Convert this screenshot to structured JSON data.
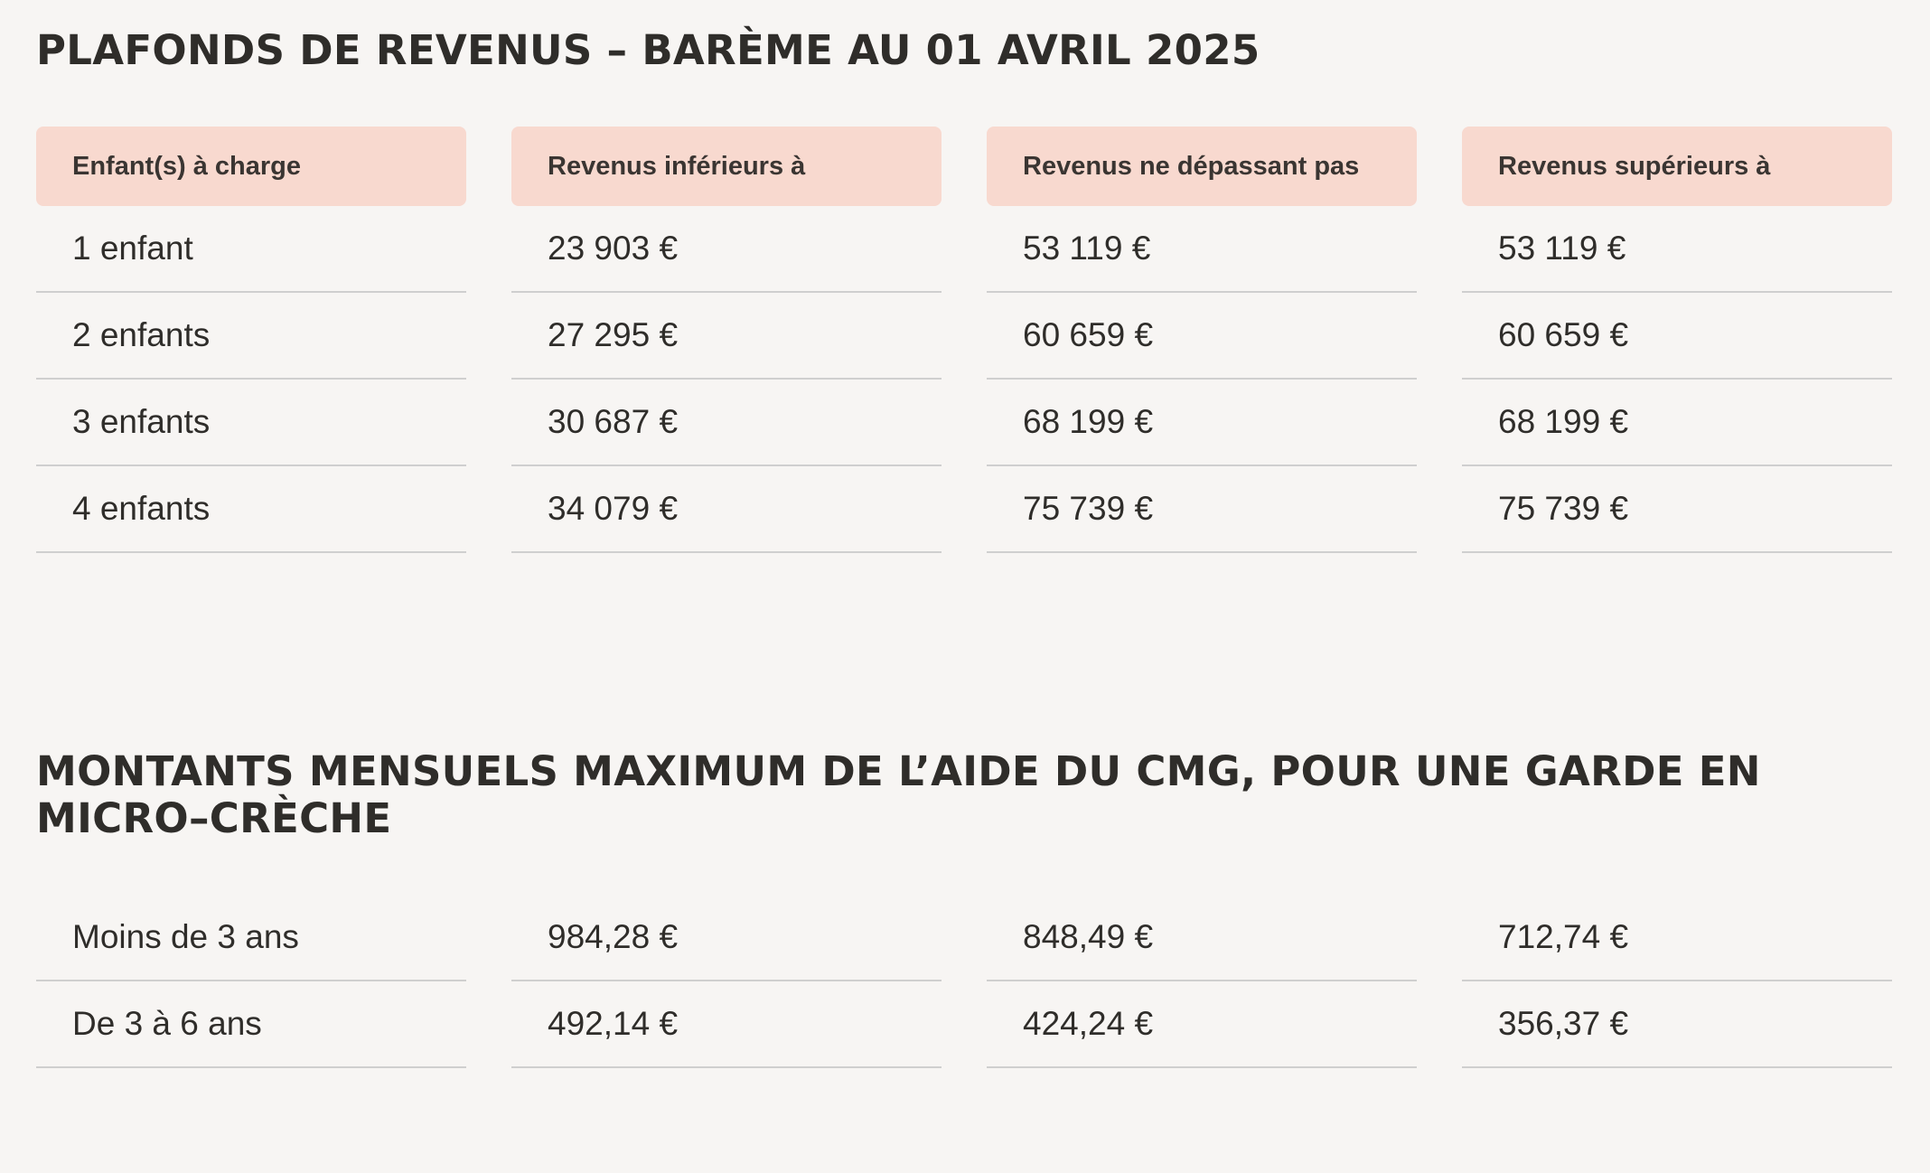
{
  "section1": {
    "title": "PLAFONDS DE REVENUS – BARÈME AU 01 AVRIL 2025",
    "headers": [
      "Enfant(s) à charge",
      "Revenus inférieurs à",
      "Revenus ne dépassant pas",
      "Revenus supérieurs à"
    ],
    "rows": [
      [
        "1 enfant",
        "23 903 €",
        "53 119 €",
        "53 119 €"
      ],
      [
        "2 enfants",
        "27 295 €",
        "60 659 €",
        "60 659 €"
      ],
      [
        "3 enfants",
        "30 687 €",
        "68 199 €",
        "68 199 €"
      ],
      [
        "4 enfants",
        "34 079 €",
        "75 739 €",
        "75 739 €"
      ]
    ]
  },
  "section2": {
    "title_line1": "MONTANTS MENSUELS MAXIMUM DE L’AIDE DU CMG, POUR UNE GARDE EN",
    "title_line2": "MICRO–CRÈCHE",
    "rows": [
      [
        "Moins de 3 ans",
        "984,28 €",
        "848,49 €",
        "712,74 €"
      ],
      [
        "De 3 à 6 ans",
        "492,14 €",
        "424,24 €",
        "356,37 €"
      ]
    ]
  },
  "colors": {
    "background": "#f7f5f3",
    "header_fill": "#f8d9cf",
    "text": "#2f2d2a",
    "divider": "#cfcfcf"
  }
}
